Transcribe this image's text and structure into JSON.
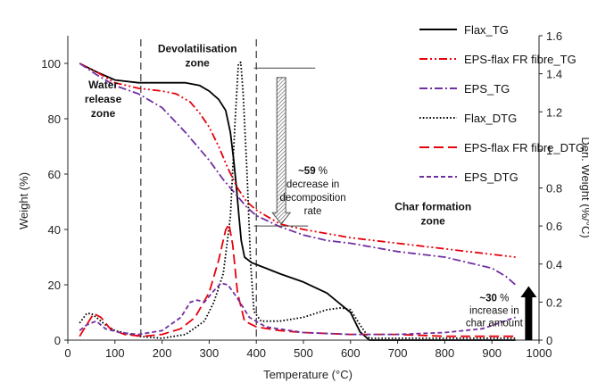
{
  "chart_data": {
    "type": "line",
    "xlabel": "Temperature (°C)",
    "ylabel": "Weight (%)",
    "y2label": "Deri. Weight (%/°C)",
    "xlim": [
      0,
      1000
    ],
    "ylim": [
      0,
      110
    ],
    "y2lim": [
      0,
      1.6
    ],
    "x_ticks": [
      0,
      100,
      200,
      300,
      400,
      500,
      600,
      700,
      800,
      900,
      1000
    ],
    "y_ticks": [
      0,
      20,
      40,
      60,
      80,
      100
    ],
    "y2_ticks": [
      0,
      0.2,
      0.4,
      0.6,
      0.8,
      1,
      1.2,
      1.4,
      1.6
    ],
    "grid": false,
    "legend_position": "top-right",
    "zone_boundaries": [
      155,
      400
    ],
    "zones": [
      {
        "lines": [
          "Water",
          "release",
          "zone"
        ]
      },
      {
        "lines": [
          "Devolatilisation",
          "zone"
        ]
      },
      {
        "lines": [
          "Char formation",
          "zone"
        ]
      }
    ],
    "annotations": [
      {
        "bold": "~59",
        "rest": " %",
        "lines": [
          "decrease in",
          "decomposition",
          "rate"
        ]
      },
      {
        "bold": "~30",
        "rest": " %",
        "lines": [
          "increase in",
          "char amount"
        ]
      }
    ],
    "series": [
      {
        "name": "Flax_TG",
        "axis": "left",
        "color": "#000000",
        "dash": "solid",
        "points": [
          [
            25,
            100
          ],
          [
            60,
            97
          ],
          [
            100,
            94
          ],
          [
            150,
            93
          ],
          [
            200,
            93
          ],
          [
            250,
            93
          ],
          [
            280,
            92
          ],
          [
            300,
            90
          ],
          [
            320,
            87
          ],
          [
            335,
            83
          ],
          [
            345,
            75
          ],
          [
            352,
            65
          ],
          [
            358,
            55
          ],
          [
            363,
            45
          ],
          [
            368,
            36
          ],
          [
            375,
            30
          ],
          [
            390,
            28
          ],
          [
            420,
            26
          ],
          [
            450,
            24
          ],
          [
            500,
            21
          ],
          [
            550,
            17
          ],
          [
            600,
            10
          ],
          [
            620,
            3
          ],
          [
            640,
            0
          ],
          [
            700,
            0
          ],
          [
            800,
            0
          ],
          [
            950,
            0
          ]
        ]
      },
      {
        "name": "EPS-flax FR fibre_TG",
        "axis": "left",
        "color": "#e8000b",
        "dash": "dashdotdot",
        "points": [
          [
            25,
            100
          ],
          [
            60,
            97
          ],
          [
            100,
            93
          ],
          [
            150,
            91
          ],
          [
            200,
            90
          ],
          [
            230,
            89
          ],
          [
            260,
            86
          ],
          [
            280,
            82
          ],
          [
            300,
            77
          ],
          [
            320,
            70
          ],
          [
            340,
            62
          ],
          [
            360,
            55
          ],
          [
            380,
            50
          ],
          [
            400,
            47
          ],
          [
            450,
            42
          ],
          [
            500,
            40
          ],
          [
            600,
            37
          ],
          [
            700,
            35
          ],
          [
            800,
            33
          ],
          [
            900,
            31
          ],
          [
            950,
            30
          ]
        ]
      },
      {
        "name": "EPS_TG",
        "axis": "left",
        "color": "#7030a0",
        "dash": "dashdot",
        "points": [
          [
            25,
            100
          ],
          [
            60,
            96
          ],
          [
            100,
            92
          ],
          [
            150,
            89
          ],
          [
            200,
            84
          ],
          [
            250,
            75
          ],
          [
            300,
            65
          ],
          [
            330,
            58
          ],
          [
            360,
            52
          ],
          [
            380,
            48
          ],
          [
            400,
            45
          ],
          [
            450,
            41
          ],
          [
            500,
            38
          ],
          [
            550,
            36
          ],
          [
            600,
            35
          ],
          [
            700,
            32
          ],
          [
            800,
            30
          ],
          [
            850,
            28
          ],
          [
            900,
            26
          ],
          [
            930,
            23
          ],
          [
            950,
            20
          ]
        ]
      },
      {
        "name": "Flax_DTG",
        "axis": "right",
        "color": "#000000",
        "dash": "dotted",
        "points": [
          [
            25,
            0.09
          ],
          [
            40,
            0.14
          ],
          [
            50,
            0.14
          ],
          [
            60,
            0.12
          ],
          [
            80,
            0.08
          ],
          [
            100,
            0.05
          ],
          [
            150,
            0.02
          ],
          [
            200,
            0.01
          ],
          [
            250,
            0.03
          ],
          [
            290,
            0.1
          ],
          [
            310,
            0.2
          ],
          [
            330,
            0.35
          ],
          [
            345,
            0.65
          ],
          [
            355,
            1.15
          ],
          [
            362,
            1.45
          ],
          [
            367,
            1.46
          ],
          [
            372,
            1.3
          ],
          [
            380,
            0.9
          ],
          [
            388,
            0.4
          ],
          [
            395,
            0.15
          ],
          [
            410,
            0.1
          ],
          [
            450,
            0.1
          ],
          [
            500,
            0.12
          ],
          [
            550,
            0.16
          ],
          [
            580,
            0.17
          ],
          [
            600,
            0.16
          ],
          [
            620,
            0.08
          ],
          [
            640,
            0.01
          ],
          [
            700,
            0.01
          ],
          [
            800,
            0.01
          ],
          [
            950,
            0.01
          ]
        ]
      },
      {
        "name": "EPS-flax FR fibre_DTG",
        "axis": "right",
        "color": "#e8000b",
        "dash": "longdash",
        "points": [
          [
            25,
            0.02
          ],
          [
            40,
            0.08
          ],
          [
            55,
            0.14
          ],
          [
            70,
            0.12
          ],
          [
            90,
            0.06
          ],
          [
            120,
            0.03
          ],
          [
            160,
            0.02
          ],
          [
            200,
            0.03
          ],
          [
            240,
            0.06
          ],
          [
            270,
            0.12
          ],
          [
            300,
            0.25
          ],
          [
            320,
            0.42
          ],
          [
            335,
            0.58
          ],
          [
            342,
            0.61
          ],
          [
            350,
            0.5
          ],
          [
            360,
            0.25
          ],
          [
            375,
            0.1
          ],
          [
            400,
            0.07
          ],
          [
            450,
            0.05
          ],
          [
            500,
            0.04
          ],
          [
            600,
            0.03
          ],
          [
            700,
            0.03
          ],
          [
            800,
            0.02
          ],
          [
            950,
            0.02
          ]
        ]
      },
      {
        "name": "EPS_DTG",
        "axis": "right",
        "color": "#7030a0",
        "dash": "shortdash",
        "points": [
          [
            25,
            0.05
          ],
          [
            40,
            0.08
          ],
          [
            60,
            0.1
          ],
          [
            80,
            0.06
          ],
          [
            110,
            0.04
          ],
          [
            150,
            0.03
          ],
          [
            200,
            0.05
          ],
          [
            240,
            0.12
          ],
          [
            260,
            0.2
          ],
          [
            275,
            0.21
          ],
          [
            290,
            0.2
          ],
          [
            310,
            0.26
          ],
          [
            325,
            0.3
          ],
          [
            340,
            0.29
          ],
          [
            360,
            0.22
          ],
          [
            385,
            0.12
          ],
          [
            420,
            0.07
          ],
          [
            500,
            0.04
          ],
          [
            600,
            0.03
          ],
          [
            700,
            0.03
          ],
          [
            800,
            0.04
          ],
          [
            880,
            0.06
          ],
          [
            950,
            0.12
          ]
        ]
      }
    ]
  }
}
